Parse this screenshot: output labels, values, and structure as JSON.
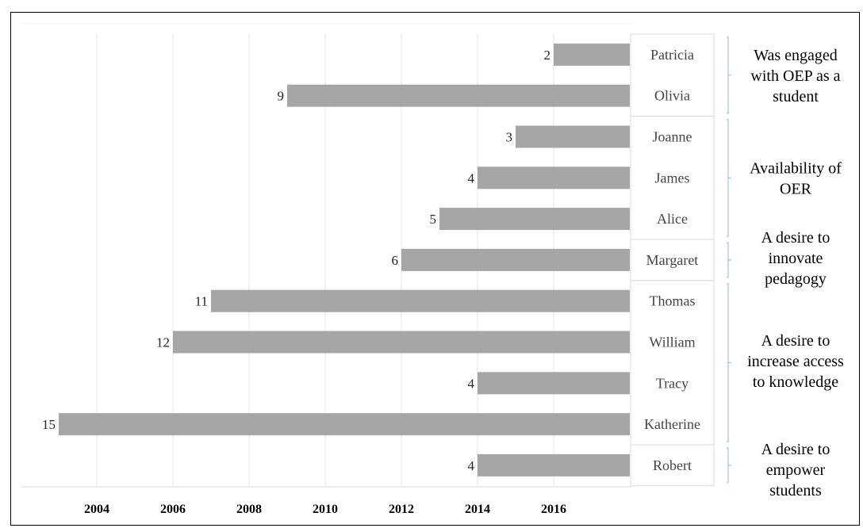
{
  "chart_data": {
    "type": "bar",
    "orientation": "horizontal",
    "title": "",
    "xlabel": "",
    "ylabel": "",
    "xlim": [
      2002,
      2018
    ],
    "x_ticks": [
      "2004",
      "2006",
      "2008",
      "2010",
      "2012",
      "2014",
      "2016"
    ],
    "grid": true,
    "bar_color": "#a6a6a6",
    "bars": [
      {
        "name": "Patricia",
        "start": 2016,
        "end": 2018,
        "label": "2"
      },
      {
        "name": "Olivia",
        "start": 2009,
        "end": 2018,
        "label": "9"
      },
      {
        "name": "Joanne",
        "start": 2015,
        "end": 2018,
        "label": "3"
      },
      {
        "name": "James",
        "start": 2014,
        "end": 2018,
        "label": "4"
      },
      {
        "name": "Alice",
        "start": 2013,
        "end": 2018,
        "label": "5"
      },
      {
        "name": "Margaret",
        "start": 2012,
        "end": 2018,
        "label": "6"
      },
      {
        "name": "Thomas",
        "start": 2007,
        "end": 2018,
        "label": "11"
      },
      {
        "name": "William",
        "start": 2006,
        "end": 2018,
        "label": "12"
      },
      {
        "name": "Tracy",
        "start": 2014,
        "end": 2018,
        "label": "4"
      },
      {
        "name": "Katherine",
        "start": 2003,
        "end": 2018,
        "label": "15"
      },
      {
        "name": "Robert",
        "start": 2014,
        "end": 2018,
        "label": "4"
      }
    ],
    "groups": [
      {
        "lines": [
          "Was engaged",
          "with OEP as a",
          "student"
        ],
        "first": 0,
        "last": 1
      },
      {
        "lines": [
          "Availability of",
          "OER"
        ],
        "first": 2,
        "last": 4
      },
      {
        "lines": [
          "A desire to",
          "innovate",
          "pedagogy"
        ],
        "first": 5,
        "last": 5
      },
      {
        "lines": [
          "A desire to",
          "increase access",
          "to knowledge"
        ],
        "first": 6,
        "last": 9
      },
      {
        "lines": [
          "A desire to",
          "empower",
          "students"
        ],
        "first": 10,
        "last": 10
      }
    ]
  }
}
